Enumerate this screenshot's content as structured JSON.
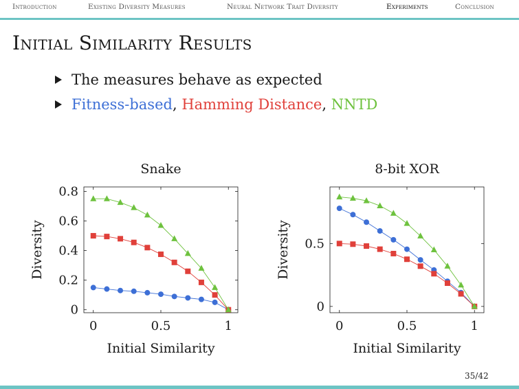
{
  "nav": {
    "items": [
      {
        "label": "Introduction",
        "active": false
      },
      {
        "label": "Existing Diversity Measures",
        "active": false
      },
      {
        "label": "Neural Network Trait Diversity",
        "active": false
      },
      {
        "label": "Experiments",
        "active": true
      },
      {
        "label": "Conclusion",
        "active": false
      }
    ]
  },
  "slide": {
    "title": "Initial Similarity Results",
    "bullet1": "The measures behave as expected",
    "bullet2": {
      "fitness": "Fitness-based",
      "sep1": ", ",
      "hamming": "Hamming Distance",
      "sep2": ", ",
      "nntd": "NNTD"
    },
    "page": "35/42"
  },
  "colors": {
    "accent_bar": "#6cc4c4",
    "fitness": "#3d6fd6",
    "hamming": "#e0403a",
    "nntd": "#6ec23e"
  },
  "chart_data": [
    {
      "type": "line",
      "title": "Snake",
      "xlabel": "Initial Similarity",
      "ylabel": "Diversity",
      "xlim": [
        -0.07,
        1.07
      ],
      "ylim": [
        -0.02,
        0.83
      ],
      "xticks": [
        0,
        0.5,
        1
      ],
      "xtick_labels": [
        "0",
        "0.5",
        "1"
      ],
      "yticks": [
        0,
        0.2,
        0.4,
        0.6,
        0.8
      ],
      "ytick_labels": [
        "0",
        "0.2",
        "0.4",
        "0.6",
        "0.8"
      ],
      "x": [
        0,
        0.1,
        0.2,
        0.3,
        0.4,
        0.5,
        0.6,
        0.7,
        0.8,
        0.9,
        1.0
      ],
      "series": [
        {
          "name": "Fitness-based",
          "color": "#3d6fd6",
          "marker": "circle",
          "values": [
            0.15,
            0.14,
            0.13,
            0.125,
            0.115,
            0.105,
            0.09,
            0.08,
            0.07,
            0.05,
            0.0
          ]
        },
        {
          "name": "Hamming Distance",
          "color": "#e0403a",
          "marker": "square",
          "values": [
            0.5,
            0.495,
            0.48,
            0.455,
            0.42,
            0.375,
            0.32,
            0.26,
            0.185,
            0.1,
            0.0
          ]
        },
        {
          "name": "NNTD",
          "color": "#6ec23e",
          "marker": "triangle",
          "values": [
            0.75,
            0.75,
            0.725,
            0.69,
            0.64,
            0.57,
            0.48,
            0.38,
            0.28,
            0.15,
            0.0
          ]
        }
      ]
    },
    {
      "type": "line",
      "title": "8-bit XOR",
      "xlabel": "Initial Similarity",
      "ylabel": "Diversity",
      "xlim": [
        -0.07,
        1.07
      ],
      "ylim": [
        -0.05,
        0.95
      ],
      "xticks": [
        0,
        0.5,
        1
      ],
      "xtick_labels": [
        "0",
        "0.5",
        "1"
      ],
      "yticks": [
        0,
        0.5
      ],
      "ytick_labels": [
        "0",
        "0.5"
      ],
      "x": [
        0,
        0.1,
        0.2,
        0.3,
        0.4,
        0.5,
        0.6,
        0.7,
        0.8,
        0.9,
        1.0
      ],
      "series": [
        {
          "name": "Fitness-based",
          "color": "#3d6fd6",
          "marker": "circle",
          "values": [
            0.78,
            0.73,
            0.67,
            0.6,
            0.53,
            0.455,
            0.37,
            0.29,
            0.2,
            0.11,
            0.0
          ]
        },
        {
          "name": "Hamming Distance",
          "color": "#e0403a",
          "marker": "square",
          "values": [
            0.5,
            0.495,
            0.48,
            0.455,
            0.42,
            0.375,
            0.32,
            0.26,
            0.185,
            0.1,
            0.0
          ]
        },
        {
          "name": "NNTD",
          "color": "#6ec23e",
          "marker": "triangle",
          "values": [
            0.87,
            0.86,
            0.84,
            0.8,
            0.74,
            0.66,
            0.56,
            0.45,
            0.32,
            0.17,
            0.0
          ]
        }
      ]
    }
  ]
}
